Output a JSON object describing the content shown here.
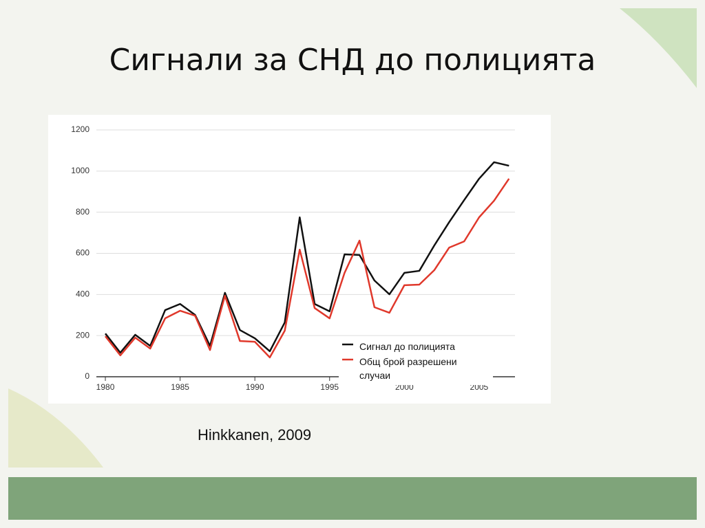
{
  "slide_title": "Сигнали за СНД до полицията",
  "source": "Hinkkanen, 2009",
  "chart_data": {
    "type": "line",
    "x": [
      1980,
      1981,
      1982,
      1983,
      1984,
      1985,
      1986,
      1987,
      1988,
      1989,
      1990,
      1991,
      1992,
      1993,
      1994,
      1995,
      1996,
      1997,
      1998,
      1999,
      2000,
      2001,
      2002,
      2003,
      2004,
      2005,
      2006,
      2007
    ],
    "series": [
      {
        "name": "Сигнал до полицията",
        "color": "#111111",
        "values": [
          210,
          117,
          204,
          150,
          324,
          354,
          301,
          150,
          408,
          227,
          187,
          124,
          264,
          775,
          354,
          318,
          595,
          592,
          468,
          401,
          505,
          515,
          638,
          752,
          859,
          963,
          1043,
          1026
        ]
      },
      {
        "name": "Общ брой разрешени случаи",
        "color": "#e0382b",
        "values": [
          197,
          104,
          190,
          137,
          284,
          321,
          297,
          130,
          394,
          174,
          170,
          94,
          224,
          618,
          334,
          284,
          505,
          662,
          338,
          311,
          445,
          448,
          518,
          628,
          658,
          775,
          856,
          963
        ]
      }
    ],
    "xlim": [
      1979.4,
      2007.4
    ],
    "xticks": [
      1980,
      1985,
      1990,
      1995,
      2000,
      2005
    ],
    "ylim": [
      0,
      1200
    ],
    "yticks": [
      0,
      200,
      400,
      600,
      800,
      1000,
      1200
    ],
    "grid": true,
    "legend": "lower right"
  }
}
